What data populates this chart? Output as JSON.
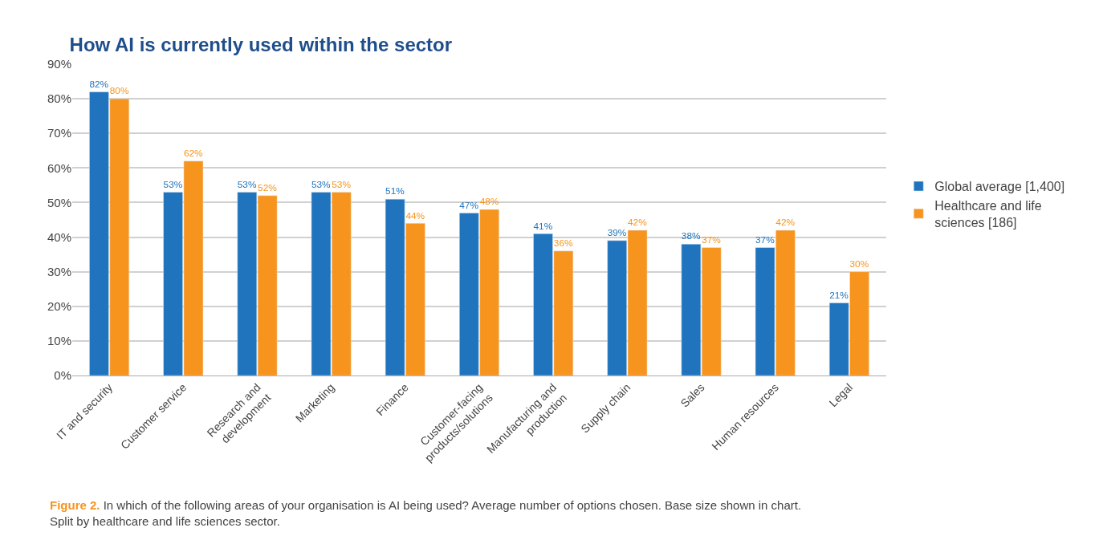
{
  "chart_data": {
    "type": "bar",
    "title": "How AI is currently used within the sector",
    "categories": [
      "IT and security",
      "Customer service",
      "Research and\ndevelopment",
      "Marketing",
      "Finance",
      "Customer-facing\nproducts/solutions",
      "Manufacturing and\nproduction",
      "Supply chain",
      "Sales",
      "Human resources",
      "Legal"
    ],
    "series": [
      {
        "name": "Global average [1,400]",
        "color": "#1f74bd",
        "values": [
          82,
          53,
          53,
          53,
          51,
          47,
          41,
          39,
          38,
          37,
          21
        ],
        "value_labels": [
          "82%",
          "53%",
          "53%",
          "53%",
          "51%",
          "47%",
          "41%",
          "39%",
          "38%",
          "37%",
          "21%"
        ]
      },
      {
        "name": "Healthcare and life\nsciences [186]",
        "color": "#f7941d",
        "values": [
          80,
          62,
          52,
          53,
          44,
          48,
          36,
          42,
          37,
          42,
          30
        ],
        "value_labels": [
          "80%",
          "62%",
          "52%",
          "53%",
          "44%",
          "48%",
          "36%",
          "42%",
          "37%",
          "42%",
          "30%"
        ]
      }
    ],
    "ylim": [
      0,
      90
    ],
    "yticks": [
      {
        "value": 0,
        "label": "0%"
      },
      {
        "value": 10,
        "label": "10%"
      },
      {
        "value": 20,
        "label": "20%"
      },
      {
        "value": 30,
        "label": "30%"
      },
      {
        "value": 40,
        "label": "40%"
      },
      {
        "value": 50,
        "label": "50%"
      },
      {
        "value": 60,
        "label": "60%"
      },
      {
        "value": 70,
        "label": "70%"
      },
      {
        "value": 80,
        "label": "80%"
      },
      {
        "value": 90,
        "label": "90%"
      }
    ],
    "grid": "y",
    "legend": "right",
    "annotations": [
      "Figure 2.",
      "In which of the following areas of your organisation is AI being used? Average number of options chosen. Base size shown in chart.\nSplit by healthcare and life sciences sector."
    ]
  }
}
